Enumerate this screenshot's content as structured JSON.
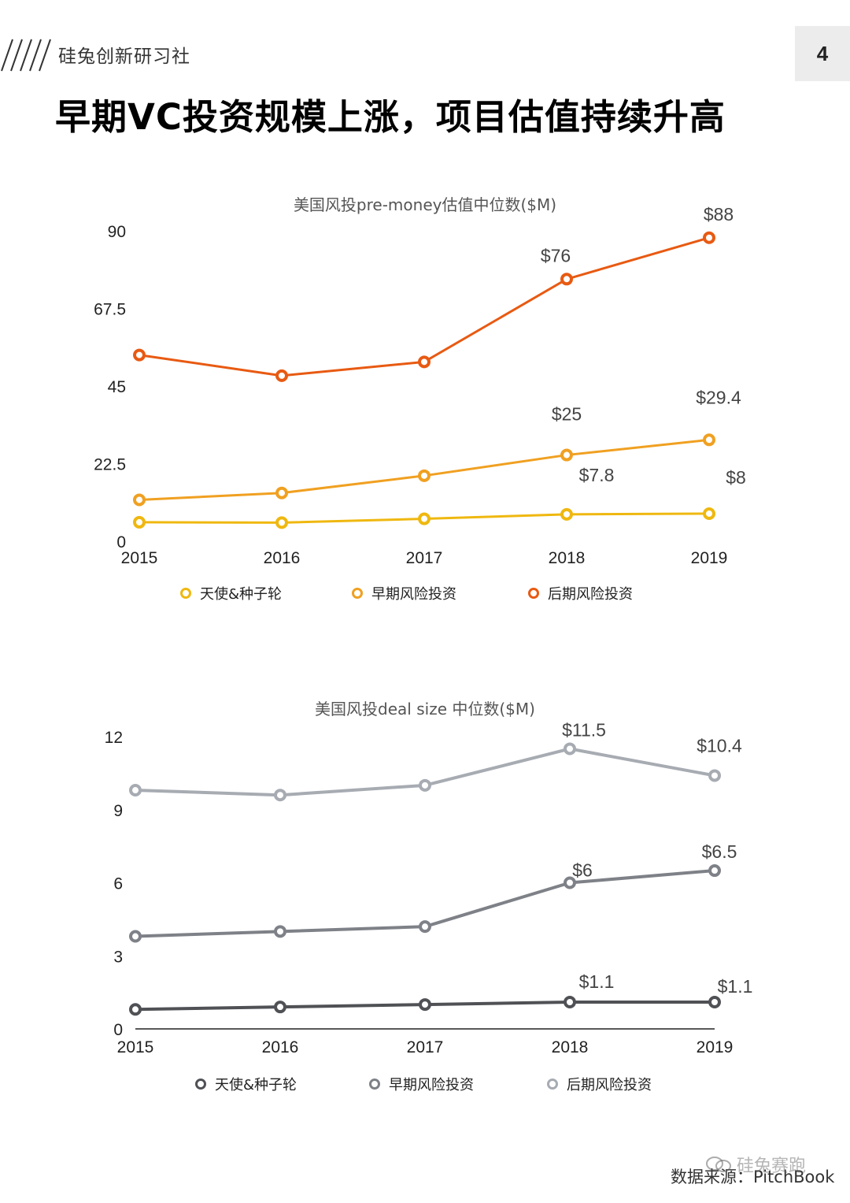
{
  "header": {
    "brand": "硅兔创新研习社",
    "page_number": "4",
    "title": "早期VC投资规模上涨，项目估值持续升高"
  },
  "chart_data": [
    {
      "type": "line",
      "title": "美国风投pre-money估值中位数($M)",
      "categories": [
        "2015",
        "2016",
        "2017",
        "2018",
        "2019"
      ],
      "ylim": [
        0,
        90
      ],
      "yticks": [
        "0",
        "22.5",
        "45",
        "67.5",
        "90"
      ],
      "series": [
        {
          "name": "天使&种子轮",
          "color": "#efb810",
          "values": [
            5.5,
            5.4,
            6.5,
            7.8,
            8
          ],
          "labels": [
            null,
            null,
            null,
            "$7.8",
            "$8"
          ]
        },
        {
          "name": "早期风险投资",
          "color": "#f0a021",
          "values": [
            12,
            14,
            19,
            25,
            29.4
          ],
          "labels": [
            null,
            null,
            null,
            "$25",
            "$29.4"
          ]
        },
        {
          "name": "后期风险投资",
          "color": "#e85a12",
          "values": [
            54,
            48,
            52,
            76,
            88
          ],
          "labels": [
            null,
            null,
            null,
            "$76",
            "$88"
          ]
        }
      ]
    },
    {
      "type": "line",
      "title": "美国风投deal size 中位数($M)",
      "categories": [
        "2015",
        "2016",
        "2017",
        "2018",
        "2019"
      ],
      "ylim": [
        0,
        12
      ],
      "yticks": [
        "0",
        "3",
        "6",
        "9",
        "12"
      ],
      "series": [
        {
          "name": "天使&种子轮",
          "color": "#4f5155",
          "values": [
            0.8,
            0.9,
            1.0,
            1.1,
            1.1
          ],
          "labels": [
            null,
            null,
            null,
            "$1.1",
            "$1.1"
          ]
        },
        {
          "name": "早期风险投资",
          "color": "#7e8187",
          "values": [
            3.8,
            4.0,
            4.2,
            6,
            6.5
          ],
          "labels": [
            null,
            null,
            null,
            "$6",
            "$6.5"
          ]
        },
        {
          "name": "后期风险投资",
          "color": "#a7abb2",
          "values": [
            9.8,
            9.6,
            10.0,
            11.5,
            10.4
          ],
          "labels": [
            null,
            null,
            null,
            "$11.5",
            "$10.4"
          ]
        }
      ]
    }
  ],
  "footer": {
    "source": "数据来源：PitchBook",
    "watermark": "硅兔赛跑"
  }
}
